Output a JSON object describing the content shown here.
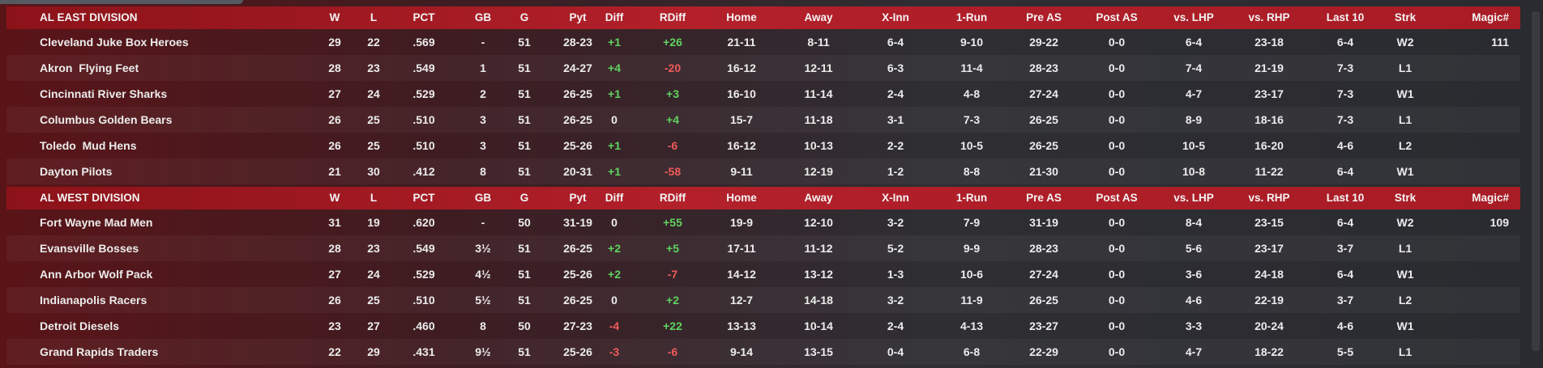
{
  "divisions": [
    {
      "title": "AL EAST DIVISION",
      "columns": [
        "W",
        "L",
        "PCT",
        "GB",
        "G",
        "Pyt",
        "Diff",
        "RDiff",
        "Home",
        "Away",
        "X-Inn",
        "1-Run",
        "Pre AS",
        "Post AS",
        "vs. LHP",
        "vs. RHP",
        "Last 10",
        "Strk",
        "Magic#"
      ],
      "rows": [
        [
          "Cleveland Juke Box Heroes",
          29,
          22,
          ".569",
          "-",
          51,
          "28-23",
          "+1",
          "+26",
          "21-11",
          "8-11",
          "6-4",
          "9-10",
          "29-22",
          "0-0",
          "6-4",
          "23-18",
          "6-4",
          "W2",
          111
        ],
        [
          "Akron  Flying Feet",
          28,
          23,
          ".549",
          1,
          51,
          "24-27",
          "+4",
          "-20",
          "16-12",
          "12-11",
          "6-3",
          "11-4",
          "28-23",
          "0-0",
          "7-4",
          "21-19",
          "7-3",
          "L1",
          null
        ],
        [
          "Cincinnati River Sharks",
          27,
          24,
          ".529",
          2,
          51,
          "26-25",
          "+1",
          "+3",
          "16-10",
          "11-14",
          "2-4",
          "4-8",
          "27-24",
          "0-0",
          "4-7",
          "23-17",
          "7-3",
          "W1",
          null
        ],
        [
          "Columbus Golden Bears",
          26,
          25,
          ".510",
          3,
          51,
          "26-25",
          0,
          "+4",
          "15-7",
          "11-18",
          "3-1",
          "7-3",
          "26-25",
          "0-0",
          "8-9",
          "18-16",
          "7-3",
          "L1",
          null
        ],
        [
          "Toledo  Mud Hens",
          26,
          25,
          ".510",
          3,
          51,
          "25-26",
          "+1",
          "-6",
          "16-12",
          "10-13",
          "2-2",
          "10-5",
          "26-25",
          "0-0",
          "10-5",
          "16-20",
          "4-6",
          "L2",
          null
        ],
        [
          "Dayton Pilots",
          21,
          30,
          ".412",
          8,
          51,
          "20-31",
          "+1",
          "-58",
          "9-11",
          "12-19",
          "1-2",
          "8-8",
          "21-30",
          "0-0",
          "10-8",
          "11-22",
          "6-4",
          "W1",
          null
        ]
      ]
    },
    {
      "title": "AL WEST DIVISION",
      "columns": [
        "W",
        "L",
        "PCT",
        "GB",
        "G",
        "Pyt",
        "Diff",
        "RDiff",
        "Home",
        "Away",
        "X-Inn",
        "1-Run",
        "Pre AS",
        "Post AS",
        "vs. LHP",
        "vs. RHP",
        "Last 10",
        "Strk",
        "Magic#"
      ],
      "rows": [
        [
          "Fort Wayne Mad Men",
          31,
          19,
          ".620",
          "-",
          50,
          "31-19",
          0,
          "+55",
          "19-9",
          "12-10",
          "3-2",
          "7-9",
          "31-19",
          "0-0",
          "8-4",
          "23-15",
          "6-4",
          "W2",
          109
        ],
        [
          "Evansville Bosses",
          28,
          23,
          ".549",
          "3½",
          51,
          "26-25",
          "+2",
          "+5",
          "17-11",
          "11-12",
          "5-2",
          "9-9",
          "28-23",
          "0-0",
          "5-6",
          "23-17",
          "3-7",
          "L1",
          null
        ],
        [
          "Ann Arbor Wolf Pack",
          27,
          24,
          ".529",
          "4½",
          51,
          "25-26",
          "+2",
          "-7",
          "14-12",
          "13-12",
          "1-3",
          "10-6",
          "27-24",
          "0-0",
          "3-6",
          "24-18",
          "6-4",
          "W1",
          null
        ],
        [
          "Indianapolis Racers",
          26,
          25,
          ".510",
          "5½",
          51,
          "26-25",
          0,
          "+2",
          "12-7",
          "14-18",
          "3-2",
          "11-9",
          "26-25",
          "0-0",
          "4-6",
          "22-19",
          "3-7",
          "L2",
          null
        ],
        [
          "Detroit Diesels",
          23,
          27,
          ".460",
          8,
          50,
          "27-23",
          "-4",
          "+22",
          "13-13",
          "10-14",
          "2-4",
          "4-13",
          "23-27",
          "0-0",
          "3-3",
          "20-24",
          "4-6",
          "W1",
          null
        ],
        [
          "Grand Rapids Traders",
          22,
          29,
          ".431",
          "9½",
          51,
          "25-26",
          "-3",
          "-6",
          "9-14",
          "13-15",
          "0-4",
          "6-8",
          "22-29",
          "0-0",
          "4-7",
          "18-22",
          "5-5",
          "L1",
          null
        ]
      ]
    }
  ]
}
